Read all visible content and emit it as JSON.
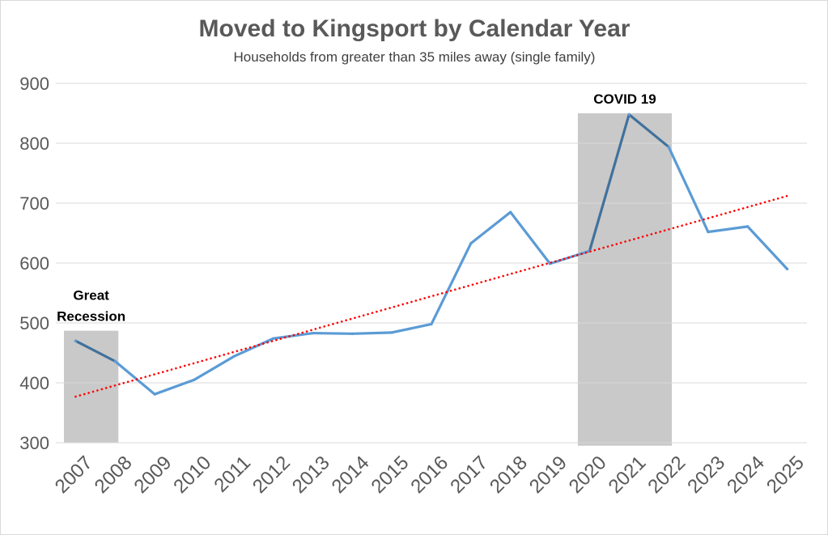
{
  "chart_data": {
    "type": "line",
    "title": "Moved to Kingsport by Calendar Year",
    "subtitle": "Households from greater than 35 miles away (single family)",
    "xlabel": "",
    "ylabel": "",
    "ylim": [
      300,
      900
    ],
    "yticks": [
      300,
      400,
      500,
      600,
      700,
      800,
      900
    ],
    "grid": true,
    "categories": [
      "2007",
      "2008",
      "2009",
      "2010",
      "2011",
      "2012",
      "2013",
      "2014",
      "2015",
      "2016",
      "2017",
      "2018",
      "2019",
      "2020",
      "2021",
      "2022",
      "2023",
      "2024",
      "2025"
    ],
    "series": [
      {
        "name": "Moved to Kingsport",
        "color": "#5b9bd5",
        "highlight_color": "#41719c",
        "values": [
          470,
          436,
          381,
          405,
          444,
          474,
          483,
          482,
          484,
          498,
          633,
          685,
          599,
          620,
          848,
          794,
          652,
          661,
          590
        ]
      }
    ],
    "trendline": {
      "name": "Linear trend",
      "color": "#ff0000",
      "style": "dotted",
      "start": 377,
      "end": 712
    },
    "shaded_periods": [
      {
        "label_lines": [
          "Great",
          "Recession"
        ],
        "from": "2007",
        "to": "2008",
        "ymin": 300,
        "ymax": 487,
        "color": "#c9c9c9"
      },
      {
        "label_lines": [
          "COVID 19"
        ],
        "from": "2020",
        "to": "2022",
        "ymin": 295,
        "ymax": 850,
        "color": "#c9c9c9"
      }
    ]
  }
}
